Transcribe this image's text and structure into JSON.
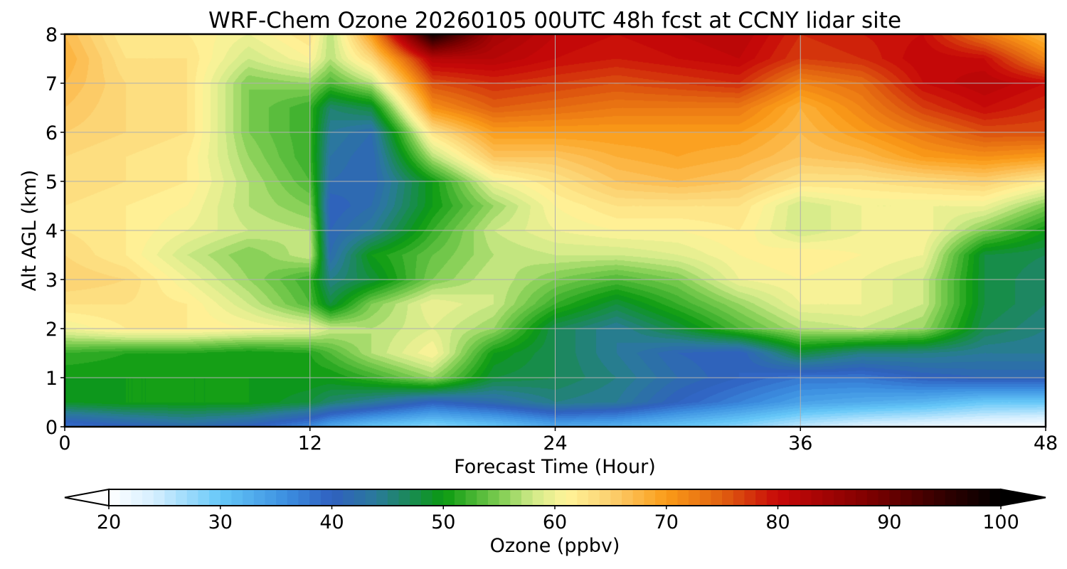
{
  "chart_data": {
    "type": "heatmap",
    "title": "WRF-Chem Ozone  20260105 00UTC 48h fcst at CCNY lidar site",
    "xlabel": "Forecast Time (Hour)",
    "ylabel": "Alt AGL (km)",
    "xlim": [
      0,
      48
    ],
    "ylim": [
      0,
      8
    ],
    "x_ticks": [
      "0",
      "12",
      "24",
      "36",
      "48"
    ],
    "y_ticks": [
      "0",
      "1",
      "2",
      "3",
      "4",
      "5",
      "6",
      "7",
      "8"
    ],
    "grid": true,
    "x": [
      0,
      3,
      6,
      9,
      12,
      13,
      15,
      18,
      21,
      24,
      27,
      30,
      33,
      36,
      39,
      42,
      45,
      48
    ],
    "y": [
      0,
      0.5,
      1,
      1.5,
      2,
      2.5,
      3,
      3.5,
      4,
      4.5,
      5,
      5.5,
      6,
      6.5,
      7,
      7.5,
      8
    ],
    "z": [
      [
        38,
        40,
        42,
        40,
        36,
        33,
        30,
        28,
        30,
        33,
        32,
        30,
        28,
        25,
        23,
        22,
        21,
        20
      ],
      [
        49,
        50,
        50,
        50,
        48,
        46,
        44,
        40,
        42,
        45,
        44,
        40,
        37,
        34,
        33,
        32,
        30,
        30
      ],
      [
        50,
        50,
        50,
        50,
        50,
        50,
        52,
        56,
        48,
        47,
        45,
        42,
        40,
        38,
        38,
        40,
        41,
        41
      ],
      [
        52,
        51,
        51,
        50,
        51,
        53,
        57,
        61,
        50,
        47,
        44,
        41,
        40,
        48,
        45,
        45,
        44,
        44
      ],
      [
        60,
        62,
        62,
        61,
        60,
        58,
        57,
        59,
        56,
        47,
        44,
        48,
        53,
        57,
        58,
        56,
        47,
        45
      ],
      [
        63,
        63,
        62,
        58,
        53,
        48,
        55,
        60,
        58,
        52,
        48,
        52,
        56,
        60,
        60,
        58,
        48,
        46
      ],
      [
        65,
        64,
        60,
        56,
        52,
        45,
        48,
        55,
        58,
        55,
        53,
        55,
        60,
        61,
        60,
        58,
        48,
        46
      ],
      [
        64,
        62,
        58,
        55,
        58,
        42,
        50,
        54,
        57,
        58,
        58,
        59,
        61,
        62,
        61,
        60,
        48,
        47
      ],
      [
        63,
        62,
        60,
        58,
        57,
        41,
        44,
        52,
        58,
        60,
        61,
        61,
        62,
        58,
        60,
        61,
        55,
        50
      ],
      [
        63,
        62,
        61,
        57,
        55,
        40,
        42,
        50,
        56,
        61,
        63,
        63,
        63,
        58,
        60,
        60,
        60,
        55
      ],
      [
        64,
        63,
        62,
        57,
        53,
        42,
        41,
        50,
        60,
        63,
        66,
        67,
        66,
        63,
        63,
        64,
        65,
        62
      ],
      [
        64,
        63,
        62,
        56,
        52,
        43,
        41,
        57,
        66,
        66,
        68,
        69,
        68,
        66,
        67,
        70,
        71,
        70
      ],
      [
        65,
        64,
        63,
        55,
        52,
        44,
        42,
        63,
        70,
        70,
        70,
        70,
        70,
        67,
        70,
        73,
        76,
        76
      ],
      [
        66,
        64,
        63,
        55,
        52,
        46,
        48,
        71,
        75,
        74,
        73,
        73,
        73,
        68,
        72,
        77,
        80,
        78
      ],
      [
        67,
        64,
        63,
        55,
        56,
        53,
        57,
        76,
        78,
        77,
        76,
        77,
        78,
        72,
        74,
        80,
        82,
        80
      ],
      [
        68,
        63,
        63,
        58,
        61,
        57,
        64,
        82,
        82,
        80,
        79,
        80,
        81,
        77,
        78,
        81,
        80,
        72
      ],
      [
        67,
        62,
        62,
        60,
        63,
        57,
        70,
        98,
        84,
        81,
        80,
        81,
        82,
        78,
        79,
        80,
        73,
        67
      ]
    ],
    "colorbar": {
      "label": "Ozone  (ppbv)",
      "min": 20,
      "max": 100,
      "ticks": [
        "20",
        "30",
        "40",
        "50",
        "60",
        "70",
        "80",
        "90",
        "100"
      ],
      "extend": "both",
      "stops": [
        [
          20,
          "#ffffff"
        ],
        [
          24,
          "#d6efff"
        ],
        [
          30,
          "#66c8f8"
        ],
        [
          36,
          "#3b8ee0"
        ],
        [
          40,
          "#3060c0"
        ],
        [
          44,
          "#2a7a9a"
        ],
        [
          50,
          "#0a9a10"
        ],
        [
          55,
          "#7ccc50"
        ],
        [
          58,
          "#d0ea88"
        ],
        [
          61,
          "#fff49a"
        ],
        [
          65,
          "#fcd070"
        ],
        [
          70,
          "#fb9c18"
        ],
        [
          75,
          "#e06010"
        ],
        [
          80,
          "#c80808"
        ],
        [
          88,
          "#800000"
        ],
        [
          95,
          "#300000"
        ],
        [
          100,
          "#000000"
        ]
      ]
    }
  }
}
